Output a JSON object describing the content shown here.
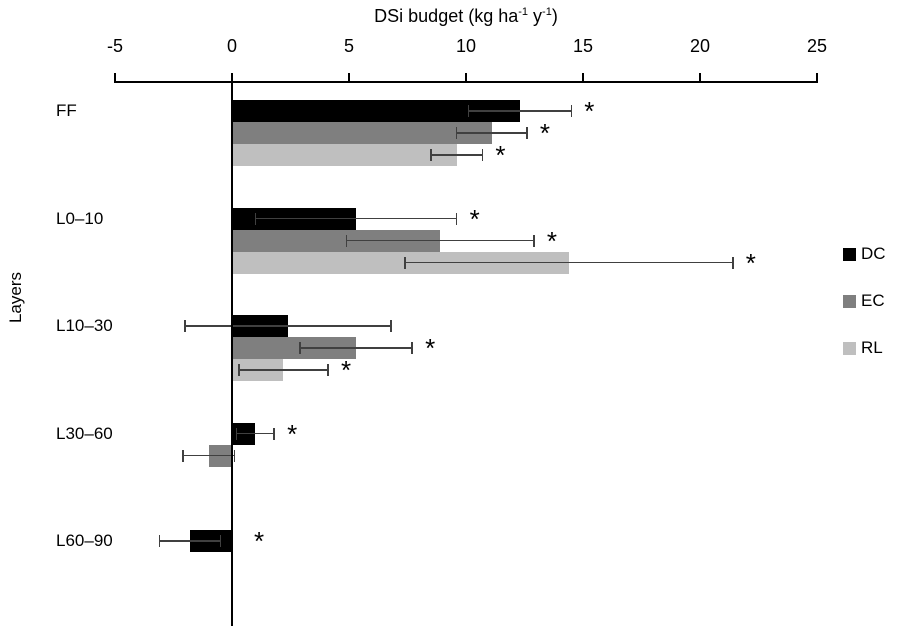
{
  "chart_data": {
    "type": "bar",
    "orientation": "horizontal",
    "title": "DSi budget (kg ha⁻¹ y⁻¹)",
    "title_parts": {
      "pre": "DSi budget (kg ha",
      "sup1": "-1",
      "mid": " y",
      "sup2": "-1",
      "post": ")"
    },
    "ylabel": "Layers",
    "xlim": [
      -5,
      25
    ],
    "xticks": [
      "-5",
      "0",
      "5",
      "10",
      "15",
      "20",
      "25"
    ],
    "xtick_values": [
      -5,
      0,
      5,
      10,
      15,
      20,
      25
    ],
    "categories": [
      "FF",
      "L0–10",
      "L10–30",
      "L30–60",
      "L60–90"
    ],
    "series": [
      {
        "name": "DC",
        "color": "#000000",
        "values": [
          12.3,
          5.3,
          2.4,
          1.0,
          -1.8
        ],
        "errors": [
          2.2,
          4.3,
          4.4,
          0.8,
          1.3
        ],
        "significant": [
          true,
          true,
          false,
          true,
          true
        ]
      },
      {
        "name": "EC",
        "color": "#7f7f7f",
        "values": [
          11.1,
          8.9,
          5.3,
          -1.0,
          null
        ],
        "errors": [
          1.5,
          4.0,
          2.4,
          1.1,
          null
        ],
        "significant": [
          true,
          true,
          true,
          false,
          false
        ]
      },
      {
        "name": "RL",
        "color": "#bfbfbf",
        "values": [
          9.6,
          14.4,
          2.2,
          null,
          null
        ],
        "errors": [
          1.1,
          7.0,
          1.9,
          null,
          null
        ],
        "significant": [
          true,
          true,
          true,
          false,
          false
        ]
      }
    ],
    "significance_marker": "*",
    "error_bar_color": "#404040",
    "legend_position": "right",
    "grid": false
  }
}
